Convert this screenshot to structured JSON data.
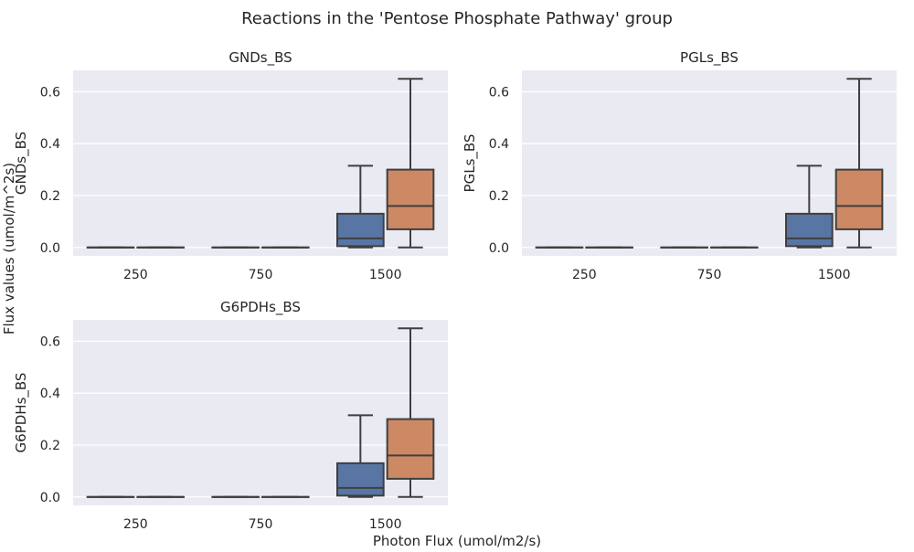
{
  "figure": {
    "title": "Reactions in the 'Pentose Phosphate Pathway' group",
    "supylabel": "Flux values (umol/m^2s)",
    "supxlabel": "Photon Flux (umol/m2/s)"
  },
  "colors": {
    "series_a": "#5875a4",
    "series_b": "#cc8963",
    "background": "#eaeaf2",
    "grid": "#ffffff",
    "line": "#3f3f3f"
  },
  "chart_data": [
    {
      "type": "box",
      "title": "GNDs_BS",
      "ylabel": "GNDs_BS",
      "xlabel": "",
      "categories": [
        "250",
        "750",
        "1500"
      ],
      "ylim": [
        -0.0325,
        0.6825
      ],
      "yticks": [
        0.0,
        0.2,
        0.4,
        0.6
      ],
      "ytick_labels": [
        "0.0",
        "0.2",
        "0.4",
        "0.6"
      ],
      "grid": true,
      "series": [
        {
          "boxes": [
            {
              "min": 0.0,
              "q1": 0.0,
              "median": 0.0,
              "q3": 0.0,
              "max": 0.0
            },
            {
              "min": 0.0,
              "q1": 0.0,
              "median": 0.0,
              "q3": 0.0,
              "max": 0.0
            },
            {
              "min": 0.0,
              "q1": 0.005,
              "median": 0.035,
              "q3": 0.13,
              "max": 0.315
            }
          ]
        },
        {
          "boxes": [
            {
              "min": 0.0,
              "q1": 0.0,
              "median": 0.0,
              "q3": 0.0,
              "max": 0.0
            },
            {
              "min": 0.0,
              "q1": 0.0,
              "median": 0.0,
              "q3": 0.0,
              "max": 0.0
            },
            {
              "min": 0.0,
              "q1": 0.07,
              "median": 0.16,
              "q3": 0.3,
              "max": 0.65
            }
          ]
        }
      ]
    },
    {
      "type": "box",
      "title": "PGLs_BS",
      "ylabel": "PGLs_BS",
      "xlabel": "",
      "categories": [
        "250",
        "750",
        "1500"
      ],
      "ylim": [
        -0.0325,
        0.6825
      ],
      "yticks": [
        0.0,
        0.2,
        0.4,
        0.6
      ],
      "ytick_labels": [
        "0.0",
        "0.2",
        "0.4",
        "0.6"
      ],
      "grid": true,
      "series": [
        {
          "boxes": [
            {
              "min": 0.0,
              "q1": 0.0,
              "median": 0.0,
              "q3": 0.0,
              "max": 0.0
            },
            {
              "min": 0.0,
              "q1": 0.0,
              "median": 0.0,
              "q3": 0.0,
              "max": 0.0
            },
            {
              "min": 0.0,
              "q1": 0.005,
              "median": 0.035,
              "q3": 0.13,
              "max": 0.315
            }
          ]
        },
        {
          "boxes": [
            {
              "min": 0.0,
              "q1": 0.0,
              "median": 0.0,
              "q3": 0.0,
              "max": 0.0
            },
            {
              "min": 0.0,
              "q1": 0.0,
              "median": 0.0,
              "q3": 0.0,
              "max": 0.0
            },
            {
              "min": 0.0,
              "q1": 0.07,
              "median": 0.16,
              "q3": 0.3,
              "max": 0.65
            }
          ]
        }
      ]
    },
    {
      "type": "box",
      "title": "G6PDHs_BS",
      "ylabel": "G6PDHs_BS",
      "xlabel": "",
      "categories": [
        "250",
        "750",
        "1500"
      ],
      "ylim": [
        -0.0325,
        0.6825
      ],
      "yticks": [
        0.0,
        0.2,
        0.4,
        0.6
      ],
      "ytick_labels": [
        "0.0",
        "0.2",
        "0.4",
        "0.6"
      ],
      "grid": true,
      "series": [
        {
          "boxes": [
            {
              "min": 0.0,
              "q1": 0.0,
              "median": 0.0,
              "q3": 0.0,
              "max": 0.0
            },
            {
              "min": 0.0,
              "q1": 0.0,
              "median": 0.0,
              "q3": 0.0,
              "max": 0.0
            },
            {
              "min": 0.0,
              "q1": 0.005,
              "median": 0.035,
              "q3": 0.13,
              "max": 0.315
            }
          ]
        },
        {
          "boxes": [
            {
              "min": 0.0,
              "q1": 0.0,
              "median": 0.0,
              "q3": 0.0,
              "max": 0.0
            },
            {
              "min": 0.0,
              "q1": 0.0,
              "median": 0.0,
              "q3": 0.0,
              "max": 0.0
            },
            {
              "min": 0.0,
              "q1": 0.07,
              "median": 0.16,
              "q3": 0.3,
              "max": 0.65
            }
          ]
        }
      ]
    }
  ]
}
